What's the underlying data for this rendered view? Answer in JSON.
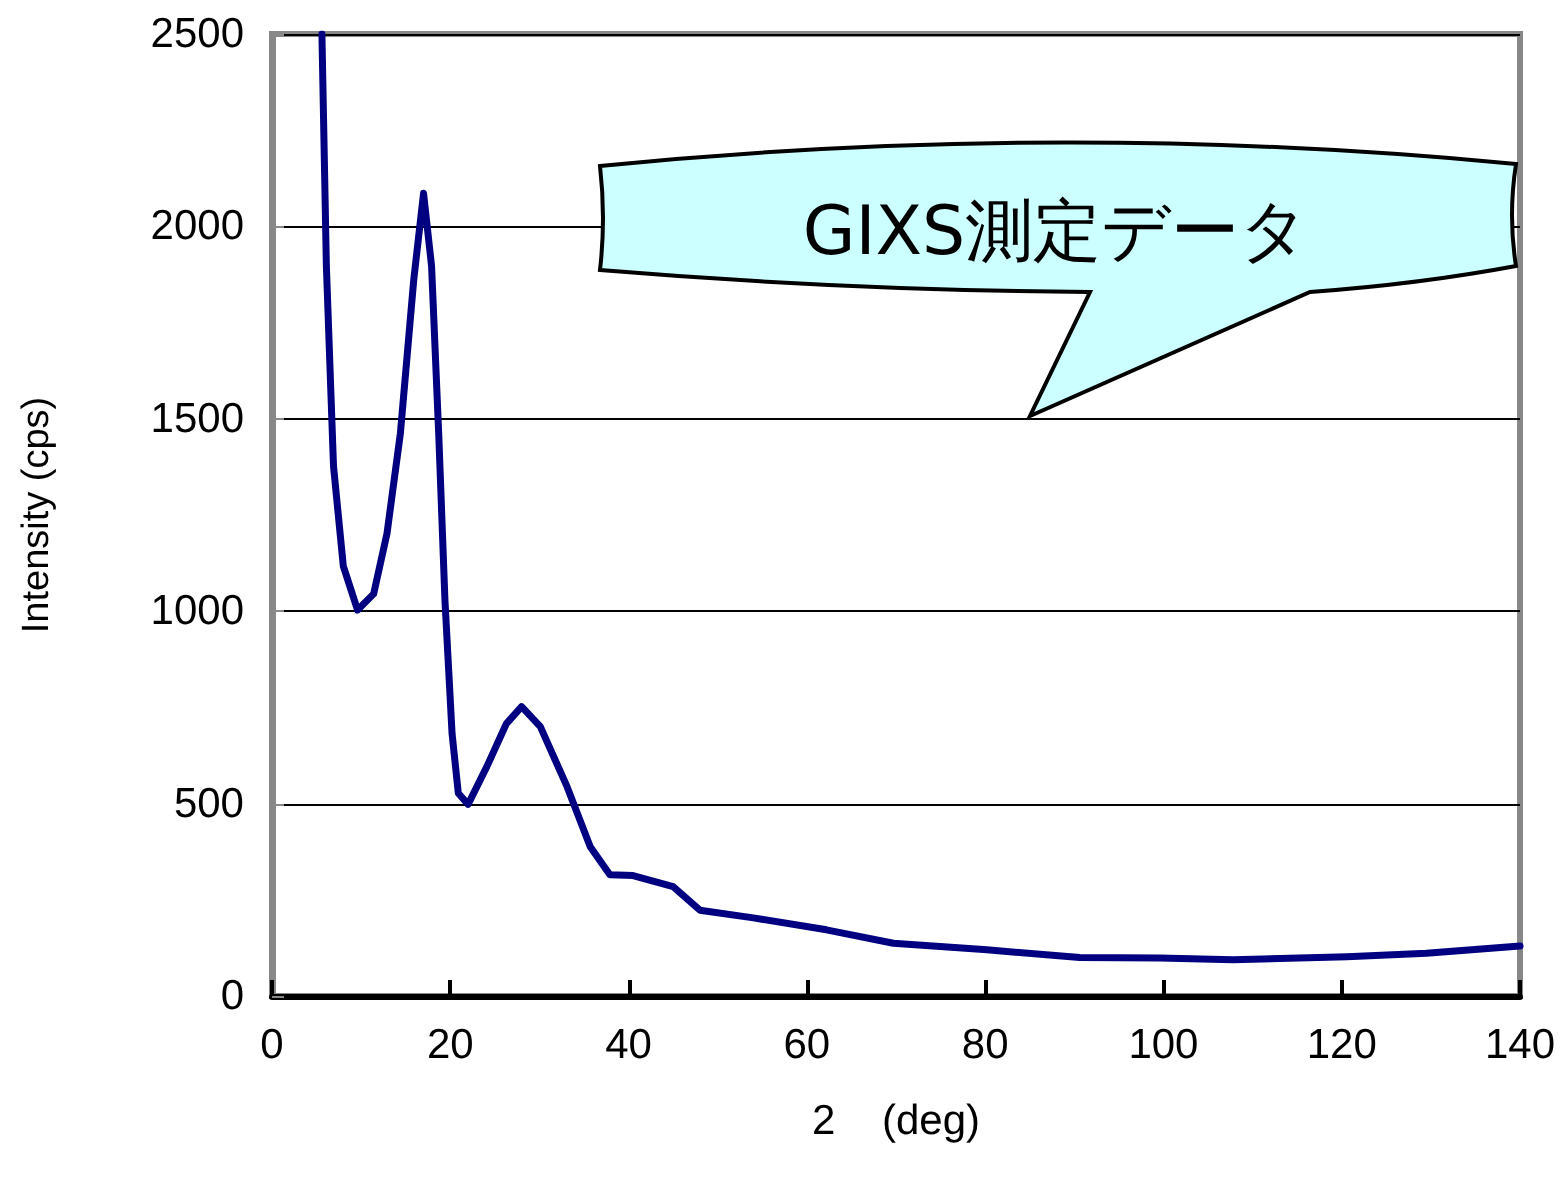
{
  "chart_data": {
    "type": "line",
    "xlabel": "2    (deg)",
    "ylabel": "Intensity (cps)",
    "annotations": [
      "GIXS測定データ"
    ],
    "xlim": [
      0,
      140
    ],
    "xticks": [
      0,
      20,
      40,
      60,
      80,
      100,
      120,
      140
    ],
    "ylim": [
      0,
      2500
    ],
    "yticks": [
      0,
      500,
      1000,
      1500,
      2000,
      2500
    ],
    "grid": "y",
    "marker": "none",
    "line_style": "solid",
    "series": [
      {
        "color": "#000080",
        "x": [
          5.6,
          6.1,
          6.9,
          8.0,
          9.6,
          11.4,
          12.9,
          14.4,
          15.9,
          17.0,
          17.9,
          18.7,
          19.4,
          20.2,
          20.9,
          22.0,
          24.1,
          26.3,
          28.0,
          30.1,
          33.1,
          35.7,
          37.9,
          40.5,
          45.0,
          48.0,
          54.0,
          62.2,
          69.7,
          80.2,
          90.6,
          99.6,
          107.8,
          120.6,
          129.5,
          140
        ],
        "values": [
          2500,
          1897,
          1377,
          1117,
          1003,
          1045,
          1202,
          1462,
          1861,
          2086,
          1897,
          1462,
          1029,
          682,
          527,
          498,
          596,
          708,
          752,
          700,
          544,
          388,
          315,
          313,
          284,
          223,
          203,
          172,
          137,
          120,
          100,
          99,
          94,
          102,
          111,
          130
        ]
      }
    ]
  }
}
